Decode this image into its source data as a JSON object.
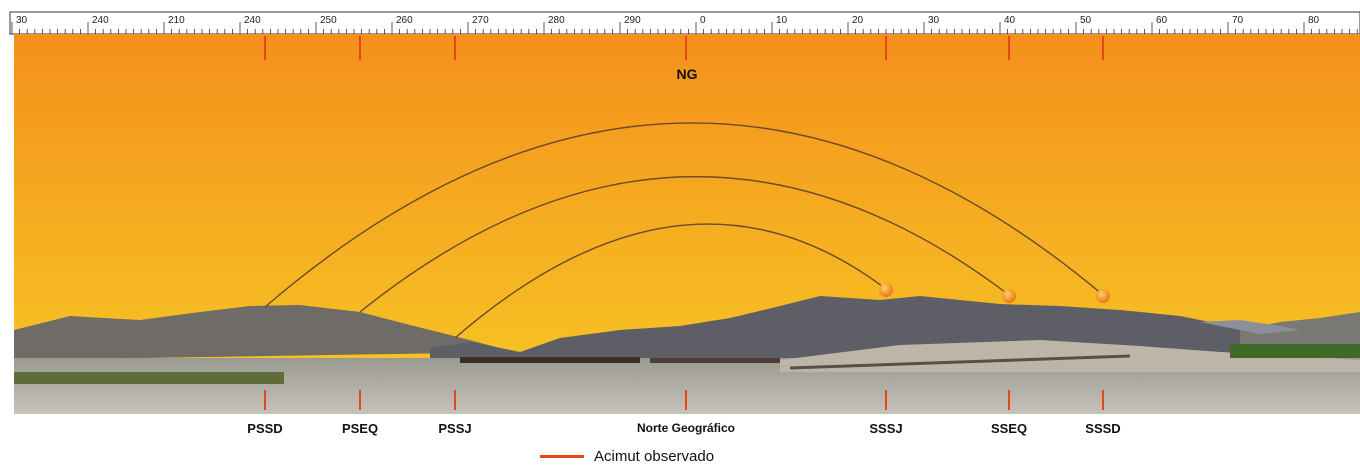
{
  "top_label": "NG",
  "ruler_labels": [
    "30",
    "240",
    "210",
    "240",
    "250",
    "260",
    "270",
    "280",
    "290",
    "0",
    "10",
    "20",
    "30",
    "40",
    "50",
    "60",
    "70",
    "80"
  ],
  "markers": [
    {
      "id": "pssd",
      "label": "PSSD"
    },
    {
      "id": "pseq",
      "label": "PSEQ"
    },
    {
      "id": "pssj",
      "label": "PSSJ"
    },
    {
      "id": "norte",
      "label": "Norte Geográfico"
    },
    {
      "id": "sssj",
      "label": "SSSJ"
    },
    {
      "id": "sseq",
      "label": "SSEQ"
    },
    {
      "id": "sssd",
      "label": "SSSD"
    }
  ],
  "legend": {
    "label": "Acimut observado"
  },
  "colors": {
    "azimuth_line": "#e8451c",
    "sky_top": "#f4901c",
    "sky_bottom": "#f7c224",
    "sun": "#f28a10"
  }
}
